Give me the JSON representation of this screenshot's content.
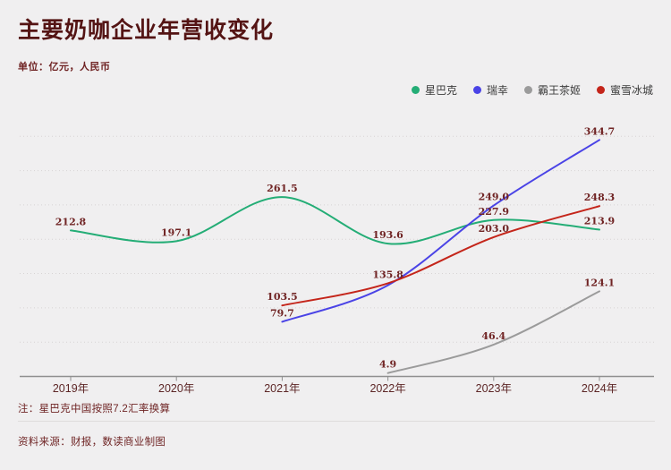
{
  "page": {
    "title": "主要奶咖企业年营收变化",
    "subtitle": "单位：亿元，人民币",
    "note": "注：星巴克中国按照7.2汇率换算",
    "source": "资料来源：财报，数读商业制图"
  },
  "colors": {
    "background": "#f0eff0",
    "title": "#541414",
    "subtitle": "#6f2323",
    "years": "#5d2727",
    "data_label": "#702424",
    "note": "#6f2525",
    "legend_text": "#3c3c3c",
    "grid": "#d7d4d4",
    "axis": "#8f8f8f",
    "divider": "#dedcdc",
    "starbucks": "#24ad76",
    "luckin": "#4a43e6",
    "chagee": "#9b9b9b",
    "mixue": "#c4251a"
  },
  "chart_data": {
    "type": "line",
    "title": "主要奶咖企业年营收变化",
    "unit": "亿元，人民币",
    "categories": [
      "2019年",
      "2020年",
      "2021年",
      "2022年",
      "2023年",
      "2024年"
    ],
    "ylim": [
      0,
      380
    ],
    "gridline_values": [
      50,
      100,
      150,
      200,
      250,
      300,
      350
    ],
    "grid": "dotted-horizontal",
    "legend_position": "top-right",
    "series": [
      {
        "name": "星巴克",
        "key": "starbucks",
        "color_key": "starbucks",
        "start_index": 0,
        "values": [
          212.8,
          197.1,
          261.5,
          193.6,
          227.9,
          213.9
        ],
        "labels": [
          "212.8",
          "197.1",
          "261.5",
          "193.6",
          "227.9",
          "213.9"
        ]
      },
      {
        "name": "瑞幸",
        "key": "luckin",
        "color_key": "luckin",
        "start_index": 2,
        "values": [
          79.7,
          132.9,
          249.0,
          344.7
        ],
        "labels": [
          "79.7",
          "",
          "249.0",
          "344.7"
        ]
      },
      {
        "name": "霸王茶姬",
        "key": "chagee",
        "color_key": "chagee",
        "start_index": 3,
        "values": [
          4.9,
          46.4,
          124.1
        ],
        "labels": [
          "4.9",
          "46.4",
          "124.1"
        ]
      },
      {
        "name": "蜜雪冰城",
        "key": "mixue",
        "color_key": "mixue",
        "start_index": 2,
        "values": [
          103.5,
          135.8,
          203.0,
          248.3
        ],
        "labels": [
          "103.5",
          "135.8",
          "203.0",
          "248.3"
        ]
      }
    ]
  }
}
